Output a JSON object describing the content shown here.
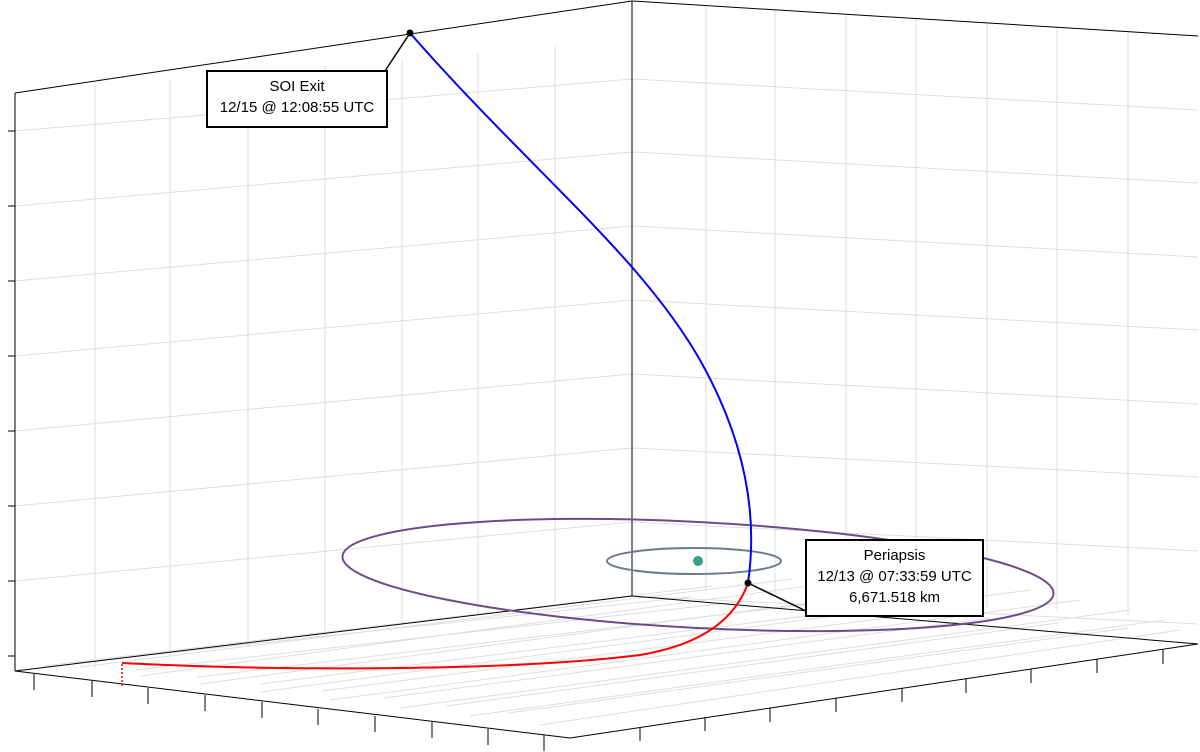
{
  "annotations": {
    "soi_exit": {
      "title": "SOI Exit",
      "time": "12/15 @ 12:08:55 UTC"
    },
    "periapsis": {
      "title": "Periapsis",
      "time": "12/13 @ 07:33:59 UTC",
      "radius": "6,671.518 km"
    }
  },
  "colors": {
    "outgoing_trajectory": "#0000ff",
    "incoming_trajectory": "#ff0000",
    "large_orbit": "#6b4c8a",
    "small_orbit": "#6e7b8f",
    "central_body": "#3f9a8c",
    "grid": "#dedede",
    "axes": "#000000"
  }
}
